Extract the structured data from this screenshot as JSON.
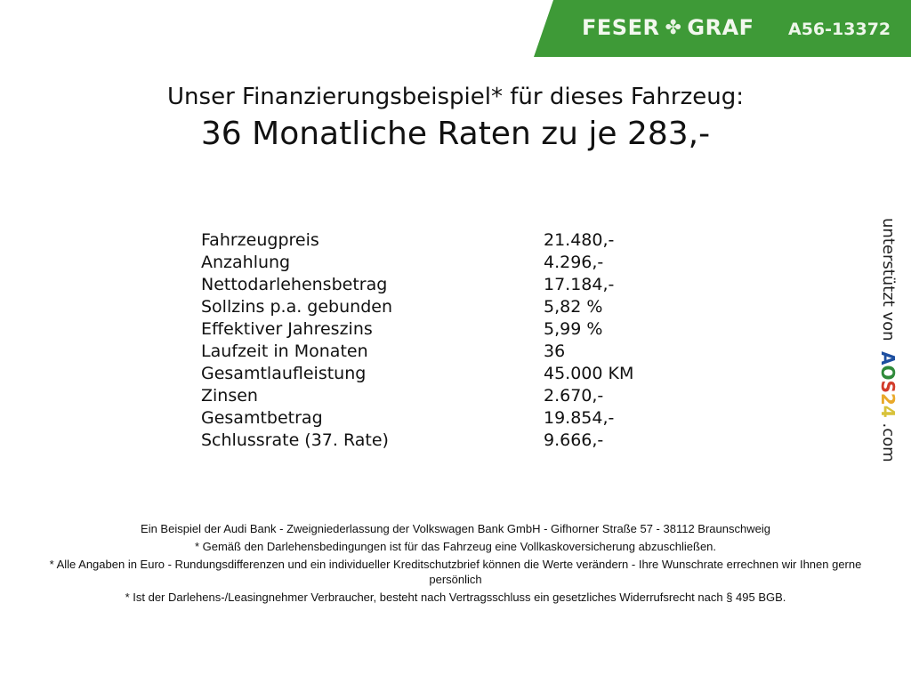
{
  "header": {
    "brand_left": "FESER",
    "brand_right": "GRAF",
    "logo_icon": "clover-icon",
    "vehicle_code": "A56-13372",
    "banner_color": "#3e9a37"
  },
  "title": {
    "line1": "Unser Finanzierungsbeispiel* für dieses Fahrzeug:",
    "line2": "36 Monatliche Raten zu je 283,-"
  },
  "finance_table": [
    {
      "label": "Fahrzeugpreis",
      "value": "21.480,-"
    },
    {
      "label": "Anzahlung",
      "value": "4.296,-"
    },
    {
      "label": "Nettodarlehensbetrag",
      "value": "17.184,-"
    },
    {
      "label": "Sollzins p.a. gebunden",
      "value": "5,82 %"
    },
    {
      "label": "Effektiver Jahreszins",
      "value": "5,99 %"
    },
    {
      "label": "Laufzeit in Monaten",
      "value": "36"
    },
    {
      "label": "Gesamtlaufleistung",
      "value": "45.000 KM"
    },
    {
      "label": "Zinsen",
      "value": "2.670,-"
    },
    {
      "label": "Gesamtbetrag",
      "value": "19.854,-"
    },
    {
      "label": "Schlussrate (37. Rate)",
      "value": "9.666,-"
    }
  ],
  "footer": {
    "line1": "Ein Beispiel der Audi Bank - Zweigniederlassung der Volkswagen Bank GmbH - Gifhorner Straße 57 - 38112 Braunschweig",
    "line2": "* Gemäß den Darlehensbedingungen ist für das Fahrzeug eine Vollkaskoversicherung abzuschließen.",
    "line3": "* Alle Angaben in Euro - Rundungsdifferenzen und ein individueller Kreditschutzbrief können die Werte verändern - Ihre Wunschrate errechnen wir Ihnen gerne persönlich",
    "line4": "* Ist der Darlehens-/Leasingnehmer Verbraucher, besteht nach Vertragsschluss ein gesetzliches Widerrufsrecht nach § 495 BGB."
  },
  "side": {
    "prefix": "unterstützt von",
    "aos_letters": [
      "A",
      "O",
      "S",
      "2",
      "4"
    ],
    "aos_colors": [
      "#1d4fa0",
      "#2f8a3a",
      "#d23b2a",
      "#e9a92a",
      "#d8c23a"
    ],
    "suffix": ".com"
  }
}
